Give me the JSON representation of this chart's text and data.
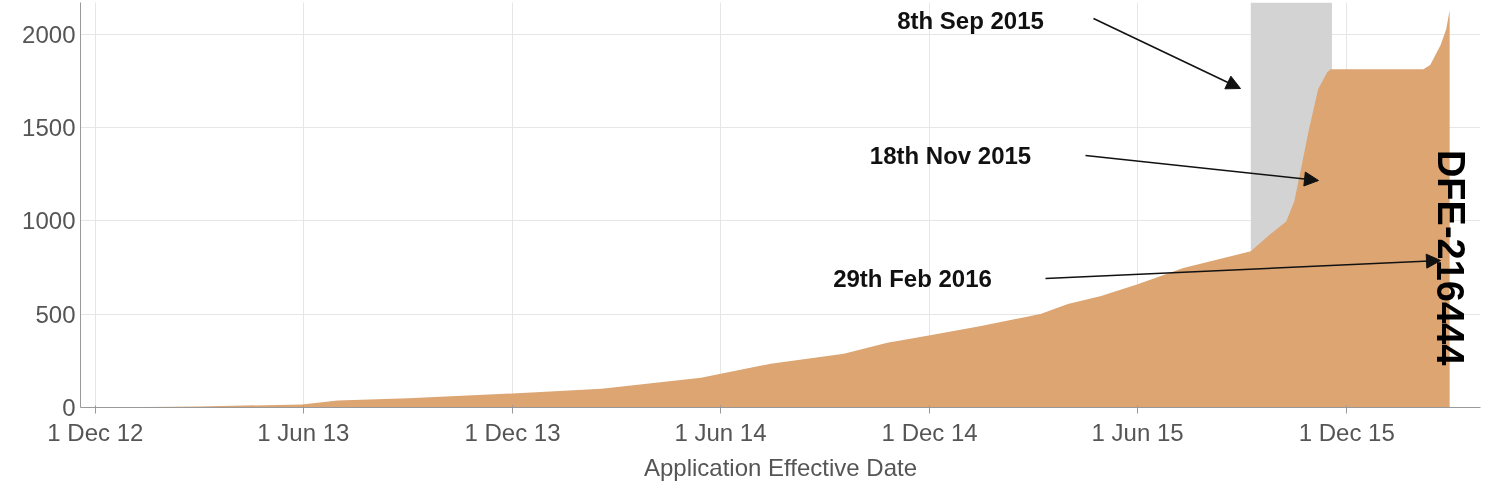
{
  "chart_data": {
    "type": "area",
    "xlabel": "Application Effective Date",
    "x": [
      "2013-01-10",
      "2013-01-14",
      "2013-03-01",
      "2013-05-31",
      "2013-07-01",
      "2013-09-01",
      "2013-12-01",
      "2014-02-17",
      "2014-05-15",
      "2014-07-15",
      "2014-09-17",
      "2014-10-25",
      "2014-11-29",
      "2015-01-15",
      "2015-03-08",
      "2015-04-01",
      "2015-04-30",
      "2015-06-01",
      "2015-07-11",
      "2015-09-08",
      "2015-09-25",
      "2015-10-09",
      "2015-10-16",
      "2015-10-22",
      "2015-10-29",
      "2015-11-06",
      "2015-11-14",
      "2015-11-17",
      "2016-02-06",
      "2016-02-12",
      "2016-02-21",
      "2016-02-26",
      "2016-02-29"
    ],
    "series": [
      {
        "color": "#dca572",
        "values": [
          0,
          3,
          6,
          16,
          37,
          50,
          75,
          100,
          160,
          235,
          288,
          347,
          384,
          437,
          501,
          555,
          597,
          661,
          747,
          837,
          928,
          997,
          1104,
          1280,
          1493,
          1707,
          1797,
          1813,
          1813,
          1835,
          1941,
          2027,
          2128
        ]
      }
    ],
    "xlim": [
      "2012-11-18",
      "2016-03-27"
    ],
    "ylim": [
      0,
      2170
    ],
    "xticks": [
      {
        "value": "2012-12-01",
        "label": "1 Dec 12"
      },
      {
        "value": "2013-06-01",
        "label": "1 Jun 13"
      },
      {
        "value": "2013-12-01",
        "label": "1 Dec 13"
      },
      {
        "value": "2014-06-01",
        "label": "1 Jun 14"
      },
      {
        "value": "2014-12-01",
        "label": "1 Dec 14"
      },
      {
        "value": "2015-06-01",
        "label": "1 Jun 15"
      },
      {
        "value": "2015-12-01",
        "label": "1 Dec 15"
      }
    ],
    "yticks": [
      0,
      500,
      1000,
      1500,
      2000
    ],
    "grid": true,
    "bands": [
      {
        "axis": "x",
        "from": "2015-09-08",
        "to": "2015-11-18",
        "color": "#d3d3d3"
      }
    ],
    "annotations": [
      "8th Sep 2015",
      "18th Nov 2015",
      "29th Feb 2016",
      "DFE-216444"
    ]
  }
}
